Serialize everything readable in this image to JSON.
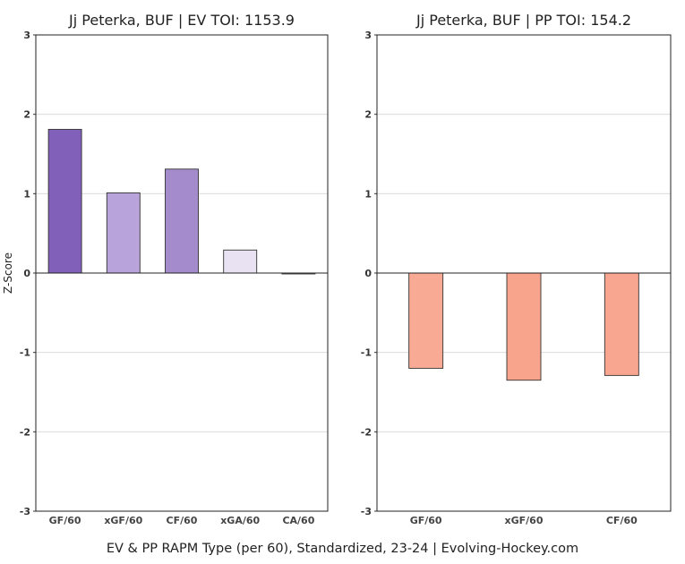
{
  "caption": "EV & PP RAPM Type (per 60), Standardized, 23-24    |    Evolving-Hockey.com",
  "chart_data": [
    {
      "type": "bar",
      "title": "Jj Peterka, BUF  |  EV TOI: 1153.9",
      "ylabel": "Z-Score",
      "xlabel": "",
      "ylim": [
        -3,
        3
      ],
      "yticks": [
        3,
        2,
        1,
        0,
        -1,
        -2,
        -3
      ],
      "ytick_labels": [
        "3",
        "2",
        "1",
        "0",
        "-1",
        "-2",
        "-3"
      ],
      "grid": true,
      "categories": [
        "GF/60",
        "xGF/60",
        "CF/60",
        "xGA/60",
        "CA/60"
      ],
      "values": [
        1.81,
        1.01,
        1.31,
        0.29,
        -0.01
      ],
      "colors": [
        "#8060b8",
        "#b8a4da",
        "#a48ccc",
        "#e8e2f2",
        "#f8f8fa"
      ]
    },
    {
      "type": "bar",
      "title": "Jj Peterka, BUF  |  PP TOI: 154.2",
      "ylabel": "",
      "xlabel": "",
      "ylim": [
        -3,
        3
      ],
      "yticks": [
        3,
        2,
        1,
        0,
        -1,
        -2,
        -3
      ],
      "ytick_labels": [
        "3",
        "2",
        "1",
        "0",
        "-1",
        "-2",
        "-3"
      ],
      "grid": true,
      "categories": [
        "GF/60",
        "xGF/60",
        "CF/60"
      ],
      "values": [
        -1.2,
        -1.35,
        -1.29
      ],
      "colors": [
        "#f8aa94",
        "#f8a48c",
        "#f8a690"
      ]
    }
  ]
}
